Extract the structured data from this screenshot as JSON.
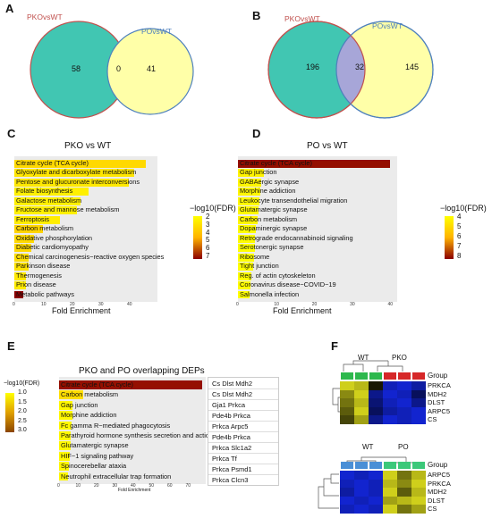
{
  "panels": {
    "A": {
      "label": "A",
      "left_set": "PKOvsWT",
      "right_set": "POvsWT",
      "left_only": "58",
      "overlap": "0",
      "right_only": "41",
      "left_color": "#41c6b2",
      "right_color": "#ffffa0"
    },
    "B": {
      "label": "B",
      "left_set": "PKOvsWT",
      "right_set": "POvsWT",
      "left_only": "196",
      "overlap": "32",
      "right_only": "145"
    },
    "C": {
      "label": "C",
      "title": "PKO vs WT",
      "xlabel": "Fold Enrichment",
      "legend_title": "−log10(FDR)",
      "legend_ticks": [
        "2",
        "3",
        "4",
        "5",
        "6",
        "7"
      ],
      "x_ticks": [
        "0",
        "10",
        "20",
        "30",
        "40"
      ]
    },
    "D": {
      "label": "D",
      "title": "PO vs WT",
      "xlabel": "Fold Enrichment",
      "legend_title": "−log10(FDR)",
      "legend_ticks": [
        "4",
        "5",
        "6",
        "7",
        "8"
      ],
      "x_ticks": [
        "0",
        "10",
        "20",
        "30",
        "40"
      ]
    },
    "E": {
      "label": "E",
      "title": "PKO and PO overlapping DEPs",
      "xlabel": "Fold Enrichment",
      "legend_title": "−log10(FDR)",
      "legend_ticks": [
        "1.0",
        "1.5",
        "2.0",
        "2.5",
        "3.0"
      ],
      "x_ticks": [
        "0",
        "10",
        "20",
        "30",
        "40",
        "50",
        "60",
        "70"
      ],
      "genes": [
        "Cs Dlst Mdh2",
        "Cs Dlst Mdh2",
        "Gja1 Prkca",
        "Pde4b Prkca",
        "Prkca Arpc5",
        "Pde4b Prkca",
        "Prkca Slc1a2",
        "Prkca Tf",
        "Prkca Psmd1",
        "Prkca Clcn3"
      ]
    },
    "F": {
      "label": "F",
      "top": {
        "group1": "WT",
        "group2": "PKO",
        "group_label": "Group",
        "rows": [
          "PRKCA",
          "MDH2",
          "DLST",
          "ARPC5",
          "CS"
        ]
      },
      "bottom": {
        "group1": "WT",
        "group2": "PO",
        "group_label": "Group",
        "rows": [
          "ARPC5",
          "PRKCA",
          "MDH2",
          "DLST",
          "CS"
        ]
      }
    }
  },
  "chart_data": [
    {
      "type": "bar",
      "title": "PKO vs WT",
      "xlabel": "Fold Enrichment",
      "categories": [
        "Citrate cycle (TCA cycle)",
        "Glyoxylate and dicarboxylate metabolism",
        "Pentose and glucuronate interconversions",
        "Folate biosynthesis",
        "Galactose metabolism",
        "Fructose and mannose metabolism",
        "Ferroptosis",
        "Carbon metabolism",
        "Oxidative phosphorylation",
        "Diabetic cardiomyopathy",
        "Chemical carcinogenesis−reactive oxygen species",
        "Parkinson disease",
        "Thermogenesis",
        "Prion disease",
        "Metabolic pathways"
      ],
      "values": [
        46,
        42,
        40,
        26,
        23,
        22,
        16,
        10,
        7,
        6,
        5,
        5,
        4,
        4,
        3
      ],
      "fdr": [
        3,
        2.5,
        2.4,
        2.1,
        2.1,
        2.1,
        2.2,
        3.2,
        3.0,
        3.0,
        2.8,
        2.6,
        2.4,
        2.3,
        7.5
      ],
      "xlim": [
        0,
        50
      ],
      "legend_range": [
        1.5,
        7.5
      ]
    },
    {
      "type": "bar",
      "title": "PO vs WT",
      "xlabel": "Fold Enrichment",
      "categories": [
        "Citrate cycle (TCA cycle)",
        "Gap junction",
        "GABAergic synapse",
        "Morphine addiction",
        "Leukocyte transendothelial migration",
        "Glutamatergic synapse",
        "Carbon metabolism",
        "Dopaminergic synapse",
        "Retrograde endocannabinoid signaling",
        "Serotonergic synapse",
        "Ribosome",
        "Tight junction",
        "Reg. of actin cytoskeleton",
        "Coronavirus disease−COVID−19",
        "Salmonella infection"
      ],
      "values": [
        40,
        6.8,
        6.2,
        5.9,
        5.7,
        5.5,
        5.3,
        4.7,
        4.6,
        4.4,
        4.2,
        3.9,
        3.5,
        3.2,
        3.0
      ],
      "fdr": [
        8.3,
        3.7,
        3.6,
        3.6,
        3.5,
        3.5,
        3.6,
        3.4,
        3.4,
        3.3,
        3.3,
        3.3,
        3.3,
        3.4,
        3.3
      ],
      "xlim": [
        0,
        42
      ],
      "legend_range": [
        3.3,
        8.5
      ]
    },
    {
      "type": "bar",
      "title": "PKO and PO overlapping DEPs",
      "xlabel": "Fold Enrichment",
      "categories": [
        "Citrate cycle (TCA cycle)",
        "Carbon metabolism",
        "Gap junction",
        "Morphine addiction",
        "Fc gamma R−mediated phagocytosis",
        "Parathyroid hormone synthesis secretion and action",
        "Glutamatergic synapse",
        "HIF−1 signaling pathway",
        "Spinocerebellar ataxia",
        "Neutrophil extracellular trap formation"
      ],
      "values": [
        78,
        13,
        7.5,
        7.2,
        7.0,
        6.5,
        6.3,
        5.9,
        5.4,
        4.9
      ],
      "fdr": [
        3.1,
        1.4,
        1.0,
        1.0,
        1.0,
        1.0,
        1.0,
        1.0,
        1.0,
        1.0
      ],
      "xlim": [
        0,
        80
      ],
      "legend_range": [
        0.9,
        3.2
      ]
    },
    {
      "type": "heatmap",
      "title": "",
      "rows": [
        "PRKCA",
        "MDH2",
        "DLST",
        "ARPC5",
        "CS"
      ],
      "columns": [
        "WT",
        "WT",
        "WT",
        "PKO",
        "PKO",
        "PKO"
      ],
      "values": [
        [
          0.9,
          0.8,
          0.1,
          -0.8,
          -0.9,
          -0.7
        ],
        [
          0.6,
          0.9,
          -0.6,
          -0.9,
          -0.8,
          -0.4
        ],
        [
          0.5,
          0.8,
          -0.5,
          -0.8,
          -0.9,
          -0.6
        ],
        [
          0.4,
          0.9,
          -0.4,
          -0.7,
          -0.8,
          -0.9
        ],
        [
          0.3,
          0.7,
          -0.6,
          -0.9,
          -0.8,
          -0.9
        ]
      ]
    },
    {
      "type": "heatmap",
      "title": "",
      "rows": [
        "ARPC5",
        "PRKCA",
        "MDH2",
        "DLST",
        "CS"
      ],
      "columns": [
        "WT",
        "WT",
        "WT",
        "PO",
        "PO",
        "PO"
      ],
      "values": [
        [
          -0.9,
          -0.8,
          -0.9,
          0.9,
          0.5,
          0.8
        ],
        [
          -0.8,
          -0.9,
          -0.8,
          0.8,
          0.6,
          0.9
        ],
        [
          -0.7,
          -0.9,
          -0.8,
          0.9,
          0.4,
          0.8
        ],
        [
          -0.9,
          -0.8,
          -0.9,
          0.7,
          0.8,
          0.9
        ],
        [
          -0.8,
          -0.9,
          -0.8,
          0.9,
          0.5,
          0.7
        ]
      ]
    }
  ]
}
